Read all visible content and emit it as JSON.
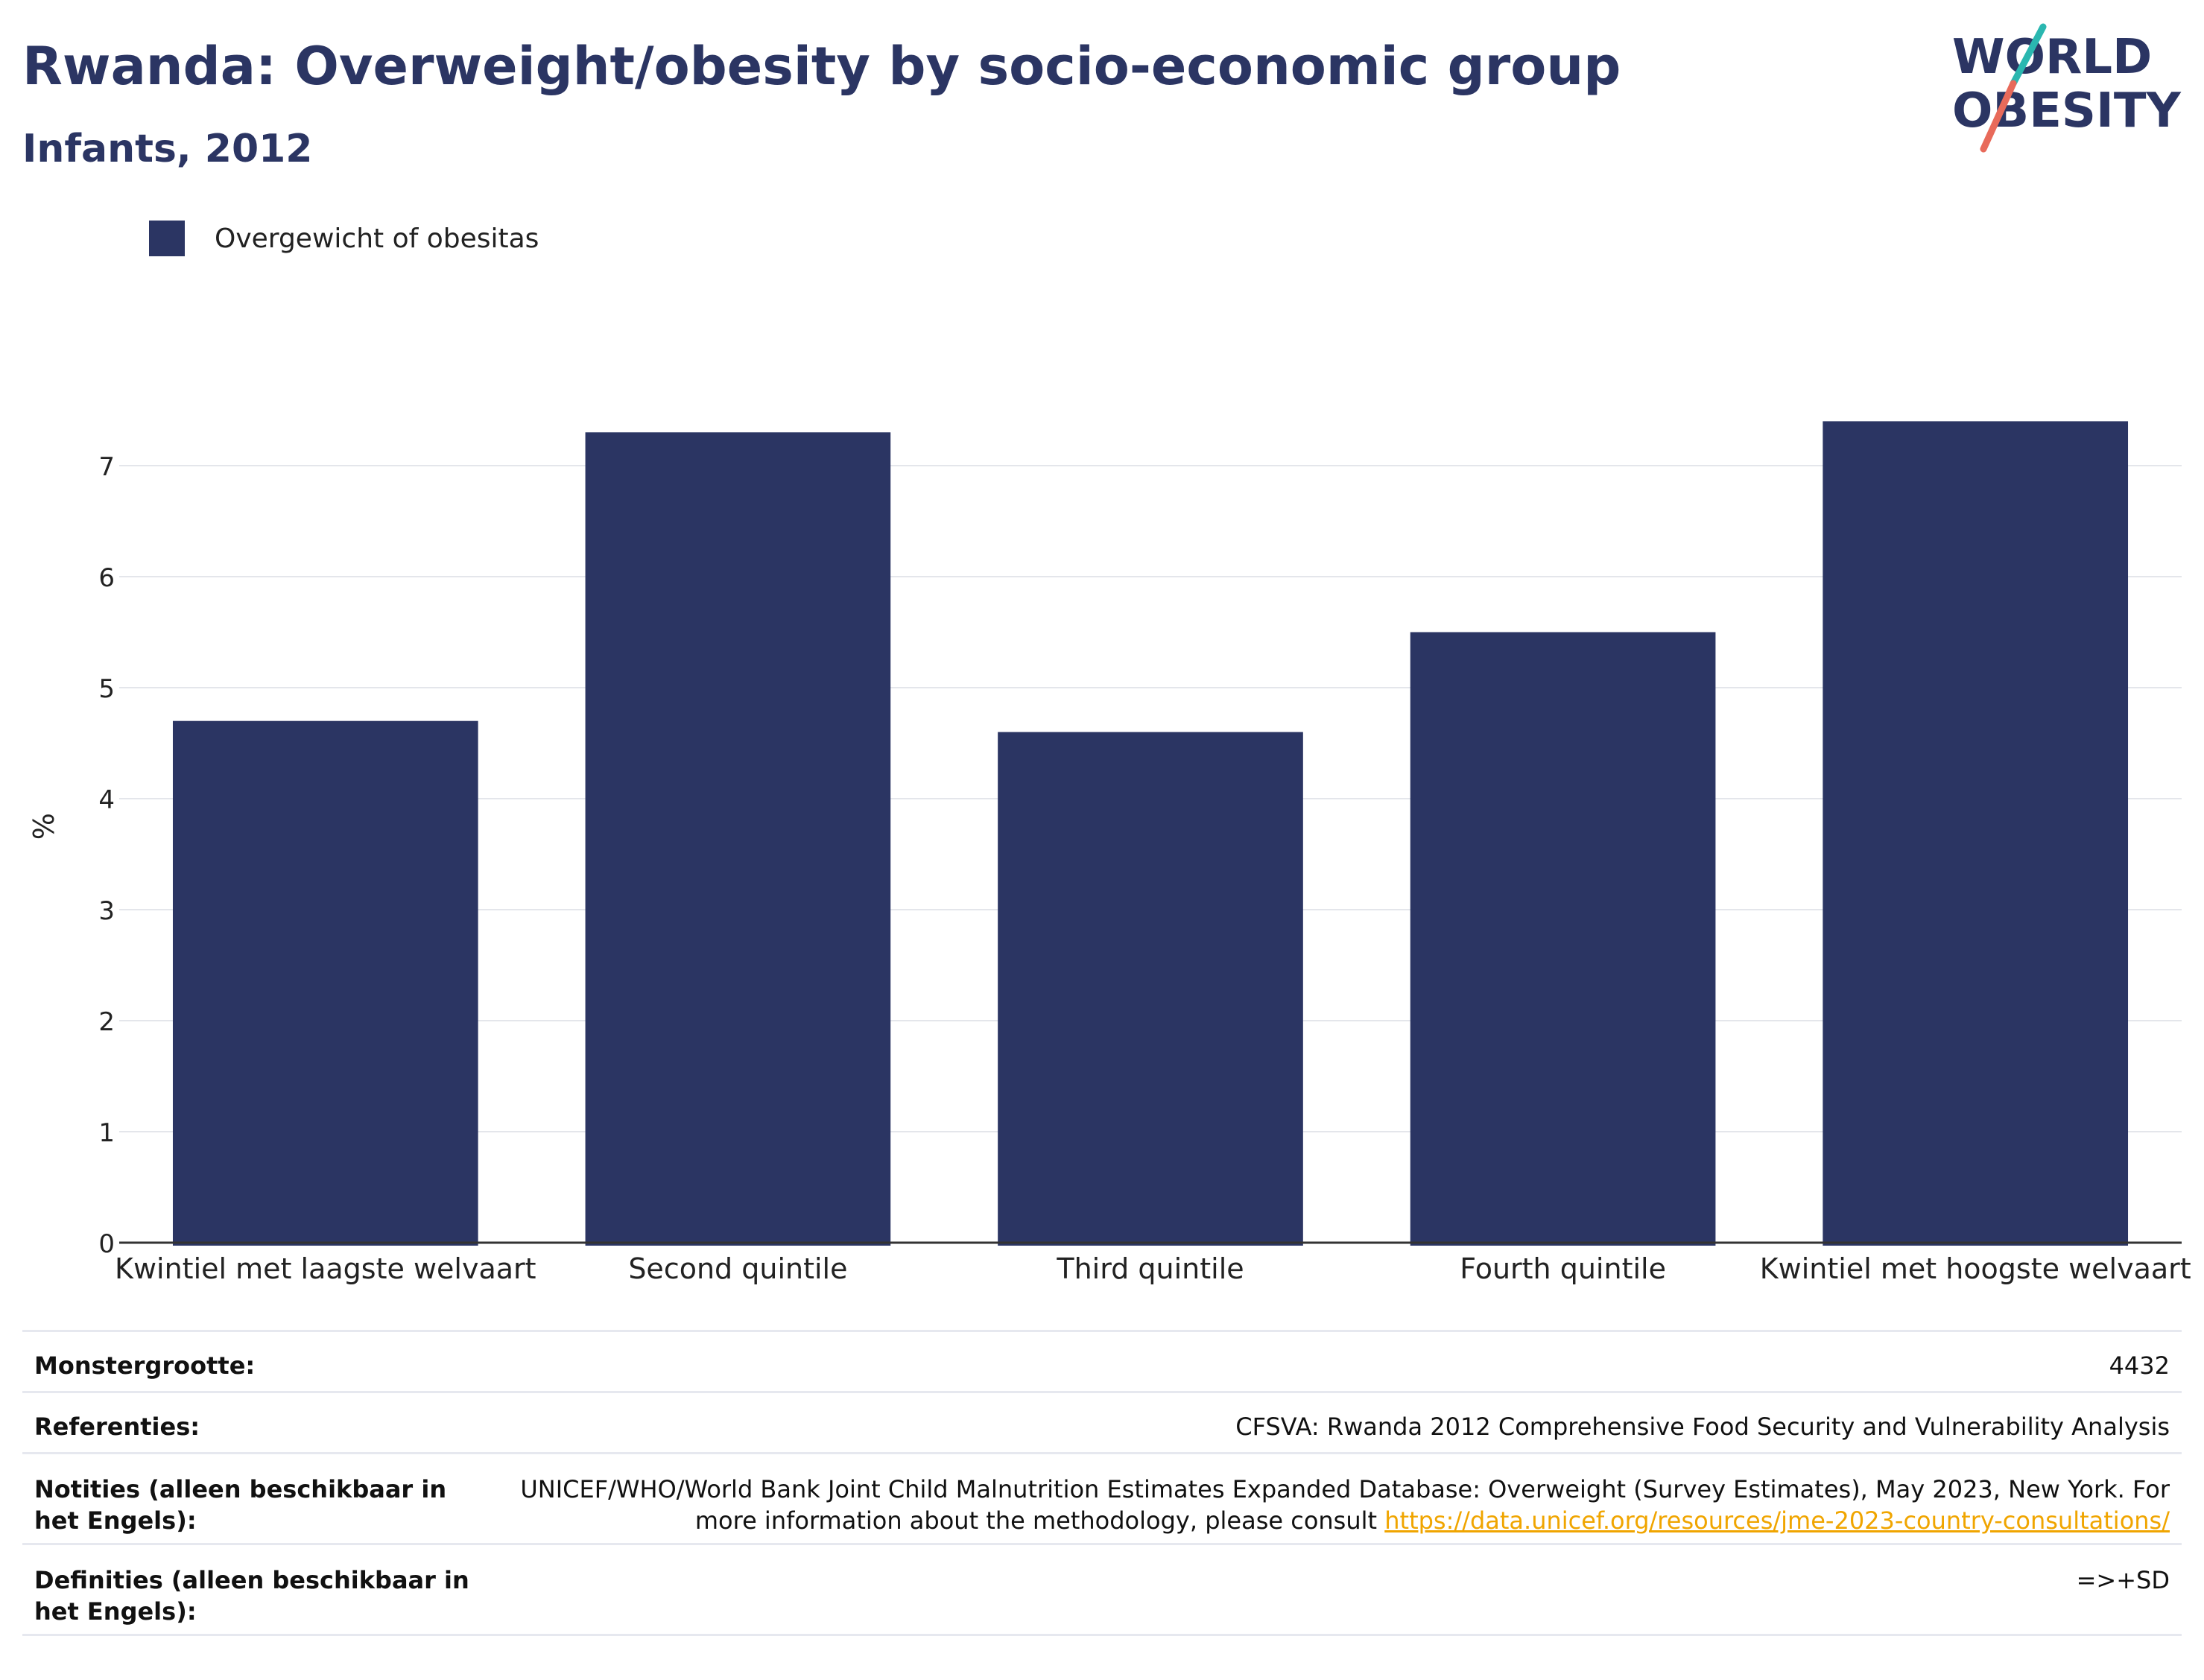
{
  "header": {
    "title": "Rwanda: Overweight/obesity by socio-economic group",
    "subtitle": "Infants, 2012"
  },
  "logo": {
    "line1": "WORLD",
    "line2": "OBESITY",
    "colors": {
      "text": "#2b3563",
      "slash_top": "#2ab7b0",
      "slash_bottom": "#e86a5a"
    }
  },
  "legend": {
    "label": "Overgewicht of obesitas",
    "color": "#2b3563"
  },
  "chart_data": {
    "type": "bar",
    "categories": [
      "Kwintiel met laagste welvaart",
      "Second quintile",
      "Third quintile",
      "Fourth quintile",
      "Kwintiel met hoogste welvaart"
    ],
    "series": [
      {
        "name": "Overgewicht of obesitas",
        "values": [
          4.7,
          7.3,
          4.6,
          5.5,
          7.4
        ],
        "color": "#2b3563"
      }
    ],
    "ylabel": "%",
    "xlabel": "",
    "ylim": [
      0,
      7.5
    ],
    "yticks": [
      0,
      1,
      2,
      3,
      4,
      5,
      6,
      7
    ],
    "grid": true,
    "legend_position": "top-left"
  },
  "info": {
    "sample_label": "Monstergrootte:",
    "sample_value": "4432",
    "refs_label": "Referenties:",
    "refs_value": "CFSVA: Rwanda 2012 Comprehensive Food Security and Vulnerability Analysis",
    "notes_label": "Notities (alleen beschikbaar in het Engels):",
    "notes_value": "UNICEF/WHO/World Bank Joint Child Malnutrition Estimates Expanded Database: Overweight (Survey Estimates), May 2023, New York. For more information about the methodology, please consult",
    "notes_link": "https://data.unicef.org/resources/jme-2023-country-consultations/",
    "defs_label": "Definities (alleen beschikbaar in het Engels):",
    "defs_value": "=>+SD"
  }
}
